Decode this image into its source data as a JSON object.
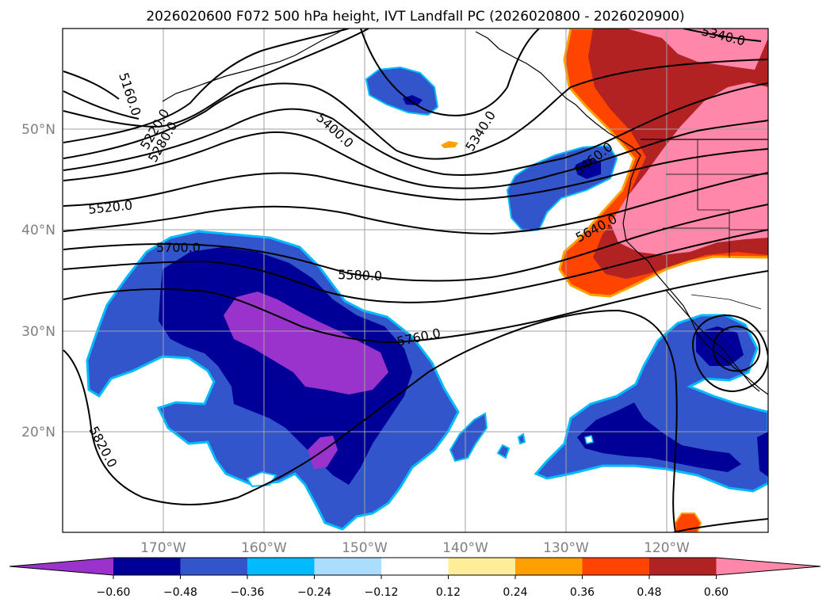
{
  "title": "2026020600 F072 500 hPa height, IVT Landfall PC (2026020800 - 2026020900)",
  "map": {
    "lon_ticks": [
      "170°W",
      "160°W",
      "150°W",
      "140°W",
      "130°W",
      "120°W"
    ],
    "lat_ticks": [
      "50°N",
      "40°N",
      "30°N",
      "20°N"
    ],
    "contour_labels": [
      "5160.0",
      "5220.0",
      "5280.0",
      "5340.0",
      "5340.0",
      "5400.0",
      "5460.0",
      "5520.0",
      "5580.0",
      "5640.0",
      "5700.0",
      "5760.0",
      "5820.0"
    ]
  },
  "colorbar": {
    "ticks": [
      "−0.60",
      "−0.48",
      "−0.36",
      "−0.24",
      "−0.12",
      "0.12",
      "0.24",
      "0.36",
      "0.48",
      "0.60"
    ],
    "colors": [
      "#9933cc",
      "#000099",
      "#3355cc",
      "#00bbff",
      "#aaddff",
      "#ffffff",
      "#ffee99",
      "#ffa000",
      "#ff4400",
      "#b22222",
      "#ff88aa"
    ]
  }
}
